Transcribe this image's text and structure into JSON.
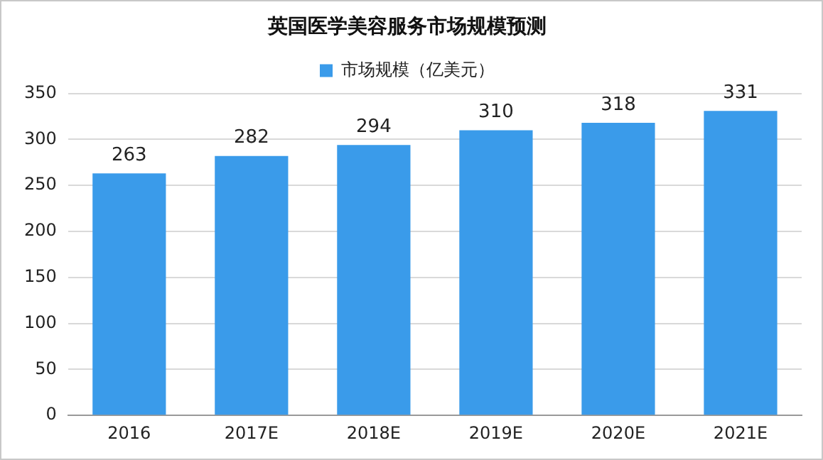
{
  "chart_data": {
    "type": "bar",
    "title": "英国医学美容服务市场规模预测",
    "categories": [
      "2016",
      "2017E",
      "2018E",
      "2019E",
      "2020E",
      "2021E"
    ],
    "series": [
      {
        "name": "市场规模（亿美元）",
        "color": "#3a9bea",
        "values": [
          263,
          282,
          294,
          310,
          318,
          331
        ]
      }
    ],
    "ylim": [
      0,
      350
    ],
    "yticks": [
      0,
      50,
      100,
      150,
      200,
      250,
      300,
      350
    ],
    "grid": "y",
    "legend": "top",
    "data_labels": true
  }
}
